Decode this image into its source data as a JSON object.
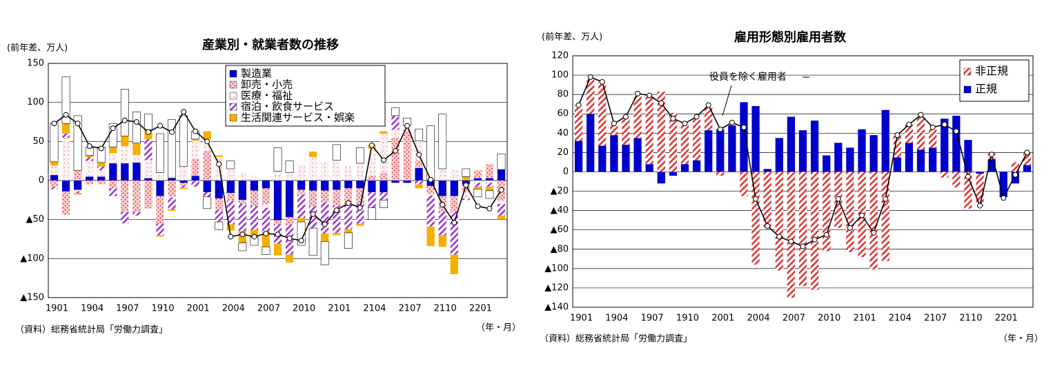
{
  "chart_data": [
    {
      "type": "stacked-bar",
      "title": "産業別・就業者数の推移",
      "y_label": "(前年差、万人)",
      "source": "（資料）総務省統計局「労働力調査」",
      "x_label": "（年・月）",
      "categories": [
        "1901",
        null,
        null,
        "1904",
        null,
        null,
        "1907",
        null,
        null,
        "1910",
        null,
        null,
        "2001",
        null,
        null,
        "2004",
        null,
        null,
        "2007",
        null,
        null,
        "2010",
        null,
        null,
        "2101",
        null,
        null,
        "2104",
        null,
        null,
        "2107",
        null,
        null,
        "2110",
        null,
        null,
        "2201",
        null,
        null
      ],
      "ylim": [
        -150,
        150
      ],
      "yticks": [
        {
          "value": -150,
          "label": "▲150"
        },
        {
          "value": -100,
          "label": "▲100"
        },
        {
          "value": -50,
          "label": "▲50"
        },
        0,
        50,
        100,
        150
      ],
      "grid": true,
      "legend": "top",
      "series": [
        {
          "name": "製造業",
          "color": "#0000cc",
          "pattern": "solid",
          "values": [
            7,
            -14,
            -12,
            5,
            5,
            22,
            22,
            23,
            3,
            -20,
            3,
            -3,
            6,
            -15,
            -23,
            -16,
            -25,
            -13,
            -10,
            -51,
            -47,
            -12,
            -13,
            -13,
            -12,
            -10,
            -10,
            -15,
            -15,
            -3,
            -3,
            16,
            -7,
            -20,
            -20,
            -5,
            3,
            3,
            14
          ]
        },
        {
          "name": "卸売・小売",
          "color": "#e03030",
          "pattern": "dots",
          "values": [
            -8,
            -30,
            13,
            -5,
            -5,
            -10,
            -40,
            -40,
            -36,
            -35,
            -20,
            -3,
            22,
            38,
            -15,
            -10,
            -5,
            -20,
            -20,
            -5,
            -10,
            -6,
            -20,
            -15,
            -20,
            -20,
            -20,
            6,
            10,
            55,
            65,
            10,
            -10,
            -20,
            -20,
            -10,
            10,
            18,
            -25
          ]
        },
        {
          "name": "医療・福祉",
          "color": "#d08080",
          "pattern": "sparse",
          "values": [
            12,
            55,
            -2,
            20,
            8,
            13,
            22,
            10,
            23,
            10,
            -2,
            18,
            23,
            15,
            30,
            15,
            10,
            6,
            -5,
            12,
            10,
            20,
            30,
            23,
            26,
            19,
            22,
            35,
            50,
            10,
            2,
            25,
            -2,
            15,
            15,
            -8,
            -3,
            -3,
            -5
          ]
        },
        {
          "name": "宿泊・飲食サービス",
          "color": "#9933cc",
          "pattern": "hatch",
          "values": [
            -3,
            5,
            -2,
            5,
            5,
            -10,
            -15,
            -5,
            27,
            -15,
            -15,
            -3,
            -8,
            -6,
            -15,
            -30,
            -35,
            -30,
            -30,
            -25,
            -38,
            -30,
            -28,
            -40,
            -35,
            -32,
            -25,
            -20,
            -10,
            18,
            3,
            -5,
            -40,
            -30,
            -55,
            -2,
            -5,
            -5,
            -15
          ]
        },
        {
          "name": "生活関連サービス・娯楽",
          "color": "#f5b000",
          "pattern": "solid",
          "values": [
            5,
            13,
            -2,
            2,
            5,
            8,
            13,
            15,
            12,
            -2,
            -2,
            -2,
            2,
            10,
            2,
            -8,
            -15,
            -10,
            -20,
            -15,
            -10,
            -5,
            7,
            -10,
            -3,
            -5,
            -3,
            5,
            3,
            0,
            0,
            -5,
            -25,
            -15,
            -25,
            5,
            -3,
            -5,
            -5
          ]
        },
        {
          "color": "#ffffff",
          "pattern": "solid",
          "values": [
            50,
            60,
            70,
            10,
            20,
            30,
            60,
            40,
            20,
            50,
            75,
            65,
            10,
            -15,
            -10,
            10,
            -10,
            -10,
            -10,
            30,
            15,
            -30,
            -35,
            -30,
            20,
            -20,
            20,
            -15,
            -10,
            10,
            10,
            15,
            70,
            70,
            0,
            10,
            -10,
            -10,
            20
          ]
        }
      ],
      "line": {
        "color": "#000000",
        "values": [
          73,
          84,
          73,
          44,
          41,
          67,
          77,
          75,
          62,
          70,
          62,
          88,
          63,
          50,
          21,
          -72,
          -69,
          -72,
          -68,
          -69,
          -74,
          -77,
          -43,
          -56,
          -38,
          -29,
          -35,
          45,
          26,
          38,
          70,
          33,
          1,
          -31,
          -54,
          -6,
          -33,
          -36,
          -12
        ]
      }
    },
    {
      "type": "stacked-bar",
      "title": "雇用形態別雇用者数",
      "y_label": "(前年差、万人)",
      "source": "（資料）総務省統計局「労働力調査」",
      "x_label": "（年・月）",
      "categories": [
        "1901",
        null,
        null,
        "1904",
        null,
        null,
        "1907",
        null,
        null,
        "1910",
        null,
        null,
        "2001",
        null,
        null,
        "2004",
        null,
        null,
        "2007",
        null,
        null,
        "2010",
        null,
        null,
        "2101",
        null,
        null,
        "2104",
        null,
        null,
        "2107",
        null,
        null,
        "2110",
        null,
        null,
        "2201",
        null,
        null
      ],
      "ylim": [
        -140,
        120
      ],
      "yticks": [
        {
          "value": -140,
          "label": "▲140"
        },
        {
          "value": -120,
          "label": "▲120"
        },
        {
          "value": -100,
          "label": "▲100"
        },
        {
          "value": -80,
          "label": "▲80"
        },
        {
          "value": -60,
          "label": "▲60"
        },
        {
          "value": -40,
          "label": "▲40"
        },
        {
          "value": -20,
          "label": "▲20"
        },
        0,
        20,
        40,
        60,
        80,
        100,
        120
      ],
      "grid": true,
      "legend": "top-right",
      "legend_order": "reverse",
      "series": [
        {
          "name": "正規",
          "color": "#0000cc",
          "pattern": "solid",
          "values": [
            32,
            60,
            27,
            38,
            28,
            35,
            8,
            -12,
            -4,
            8,
            12,
            43,
            44,
            48,
            72,
            68,
            3,
            35,
            57,
            43,
            53,
            17,
            30,
            25,
            44,
            38,
            64,
            15,
            30,
            23,
            25,
            55,
            58,
            33,
            -2,
            13,
            -26,
            -12,
            7
          ]
        },
        {
          "name": "非正規",
          "color": "#e03030",
          "pattern": "hatch",
          "values": [
            37,
            38,
            66,
            12,
            29,
            46,
            71,
            83,
            61,
            42,
            45,
            26,
            -4,
            3,
            -25,
            -96,
            -59,
            -102,
            -130,
            -118,
            -122,
            -82,
            -58,
            -83,
            -88,
            -101,
            -92,
            23,
            19,
            36,
            21,
            -6,
            -16,
            -38,
            -33,
            6,
            0,
            10,
            12
          ]
        }
      ],
      "line": {
        "color": "#000000",
        "values": [
          69,
          98,
          93,
          50,
          57,
          81,
          79,
          71,
          55,
          50,
          57,
          69,
          44,
          51,
          46,
          -28,
          -56,
          -67,
          -72,
          -77,
          -70,
          -65,
          -28,
          -58,
          -45,
          -63,
          -28,
          38,
          49,
          59,
          46,
          49,
          42,
          -5,
          -35,
          18,
          -27,
          -3,
          20
        ]
      },
      "annotations": [
        {
          "text": "役員を除く雇用者"
        }
      ]
    }
  ]
}
